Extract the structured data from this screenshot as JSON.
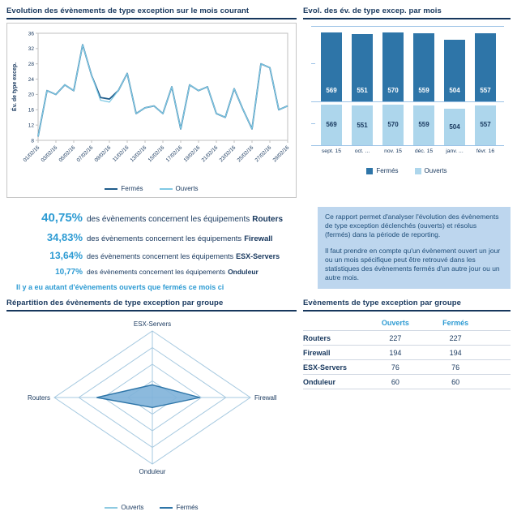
{
  "colors": {
    "navy": "#17375D",
    "accent_blue": "#2D9BD3",
    "dark_series": "#2E75A8",
    "light_series": "#ADD6EC",
    "grid_gray": "#BFBFBF",
    "grid_blue": "#9DC3E6",
    "info_box_bg": "#BDD6EE"
  },
  "chart_data": [
    {
      "type": "line",
      "title": "Evolution des évènements de type exception sur le mois courant",
      "ylabel": "Év. de type excep.",
      "ylim": [
        8,
        36
      ],
      "yticks": [
        8,
        12,
        16,
        20,
        24,
        28,
        32,
        36
      ],
      "x_tick_labels": [
        "01/02/16",
        "03/02/16",
        "05/02/16",
        "07/02/16",
        "09/02/16",
        "11/02/16",
        "13/02/16",
        "15/02/16",
        "17/02/16",
        "19/02/16",
        "21/02/16",
        "23/02/16",
        "25/02/16",
        "27/02/16",
        "29/02/16"
      ],
      "legend_position": "bottom",
      "series": [
        {
          "name": "Fermés",
          "color": "#1F5C8B",
          "values": [
            9,
            21,
            20,
            22.5,
            21,
            33,
            25,
            19.2,
            18.8,
            21,
            25.5,
            15,
            16.5,
            17,
            15,
            22,
            11,
            22.5,
            21,
            22,
            15,
            14,
            21.5,
            16,
            11,
            28,
            27,
            16,
            17
          ]
        },
        {
          "name": "Ouverts",
          "color": "#7FC9E4",
          "values": [
            9,
            21,
            20,
            22.5,
            21,
            33,
            25,
            18.5,
            18,
            21,
            25.5,
            15,
            16.5,
            17,
            15,
            22,
            11,
            22.5,
            21,
            22,
            15,
            14,
            21.5,
            16,
            11,
            28,
            27,
            16,
            17
          ]
        }
      ]
    },
    {
      "type": "bar",
      "title": "Evol. des év. de type excep. par mois",
      "categories": [
        "sept. 15",
        "oct. ...",
        "nov. 15",
        "déc. 15",
        "janv. ...",
        "févr. 16"
      ],
      "ylim": [
        0,
        600
      ],
      "legend_position": "bottom",
      "series": [
        {
          "name": "Fermés",
          "color": "#2E75A8",
          "values": [
            569,
            551,
            570,
            559,
            504,
            557
          ]
        },
        {
          "name": "Ouverts",
          "color": "#ADD6EC",
          "values": [
            569,
            551,
            570,
            559,
            504,
            557
          ]
        }
      ]
    },
    {
      "type": "radar",
      "title": "Répartition des évènements de type exception par groupe",
      "axes": [
        "ESX-Servers",
        "Firewall",
        "Onduleur",
        "Routers"
      ],
      "max": 400,
      "rings": 4,
      "legend_position": "bottom",
      "series": [
        {
          "name": "Ouverts",
          "color": "#7FB3D9",
          "stroke": "#8ECAE1",
          "values": [
            76,
            194,
            60,
            227
          ]
        },
        {
          "name": "Fermés",
          "color": "#2E75A8",
          "stroke": "#2E75A8",
          "values": [
            76,
            194,
            60,
            227
          ]
        }
      ]
    },
    {
      "type": "table",
      "title": "Evènements de type exception par groupe",
      "columns": [
        "",
        "Ouverts",
        "Fermés"
      ],
      "rows": [
        [
          "Routers",
          "227",
          "227"
        ],
        [
          "Firewall",
          "194",
          "194"
        ],
        [
          "ESX-Servers",
          "76",
          "76"
        ],
        [
          "Onduleur",
          "60",
          "60"
        ]
      ]
    }
  ],
  "stats": {
    "items": [
      {
        "pct": "40,75%",
        "text": "des évènements concernent les équipements",
        "target": "Routers"
      },
      {
        "pct": "34,83%",
        "text": "des évènements concernent les équipements",
        "target": "Firewall"
      },
      {
        "pct": "13,64%",
        "text": "des évènements concernent les équipements",
        "target": "ESX-Servers"
      },
      {
        "pct": "10,77%",
        "text": "des évènements concernent les équipements",
        "target": "Onduleur"
      }
    ],
    "footnote": "Il y a eu autant d'évènements ouverts que fermés ce mois ci"
  },
  "info_box": {
    "p1": "Ce rapport permet d'analyser l'évolution des évènements de type exception déclenchés (ouverts) et résolus (fermés) dans la période de reporting.",
    "p2": "Il faut prendre en compte qu'un évènement ouvert un jour ou un mois spécifique peut être retrouvé dans les statistiques des évènements fermés d'un autre jour ou un autre mois."
  }
}
